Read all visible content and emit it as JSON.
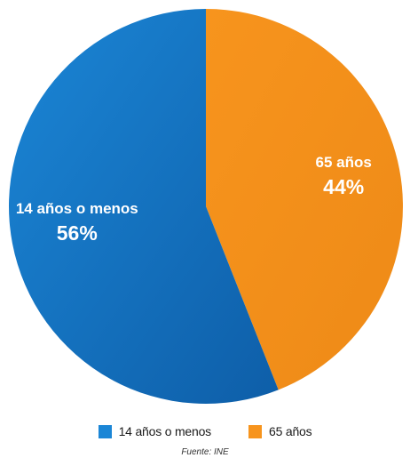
{
  "chart_data": {
    "type": "pie",
    "categories": [
      "14 años o menos",
      "65 años"
    ],
    "values": [
      56,
      44
    ],
    "value_labels": [
      "56%",
      "44%"
    ],
    "colors": [
      "#1b86d6",
      "#f7941d"
    ],
    "gradient_end_colors": [
      "#0e5ea8",
      "#ee8a17"
    ],
    "legend": {
      "placement": "bottom-center",
      "items": [
        {
          "label": "14 años o menos",
          "color": "#1b86d6"
        },
        {
          "label": "65 años",
          "color": "#f7941d"
        }
      ]
    },
    "start_angle_degrees": 0
  },
  "source": "Fuente: INE"
}
